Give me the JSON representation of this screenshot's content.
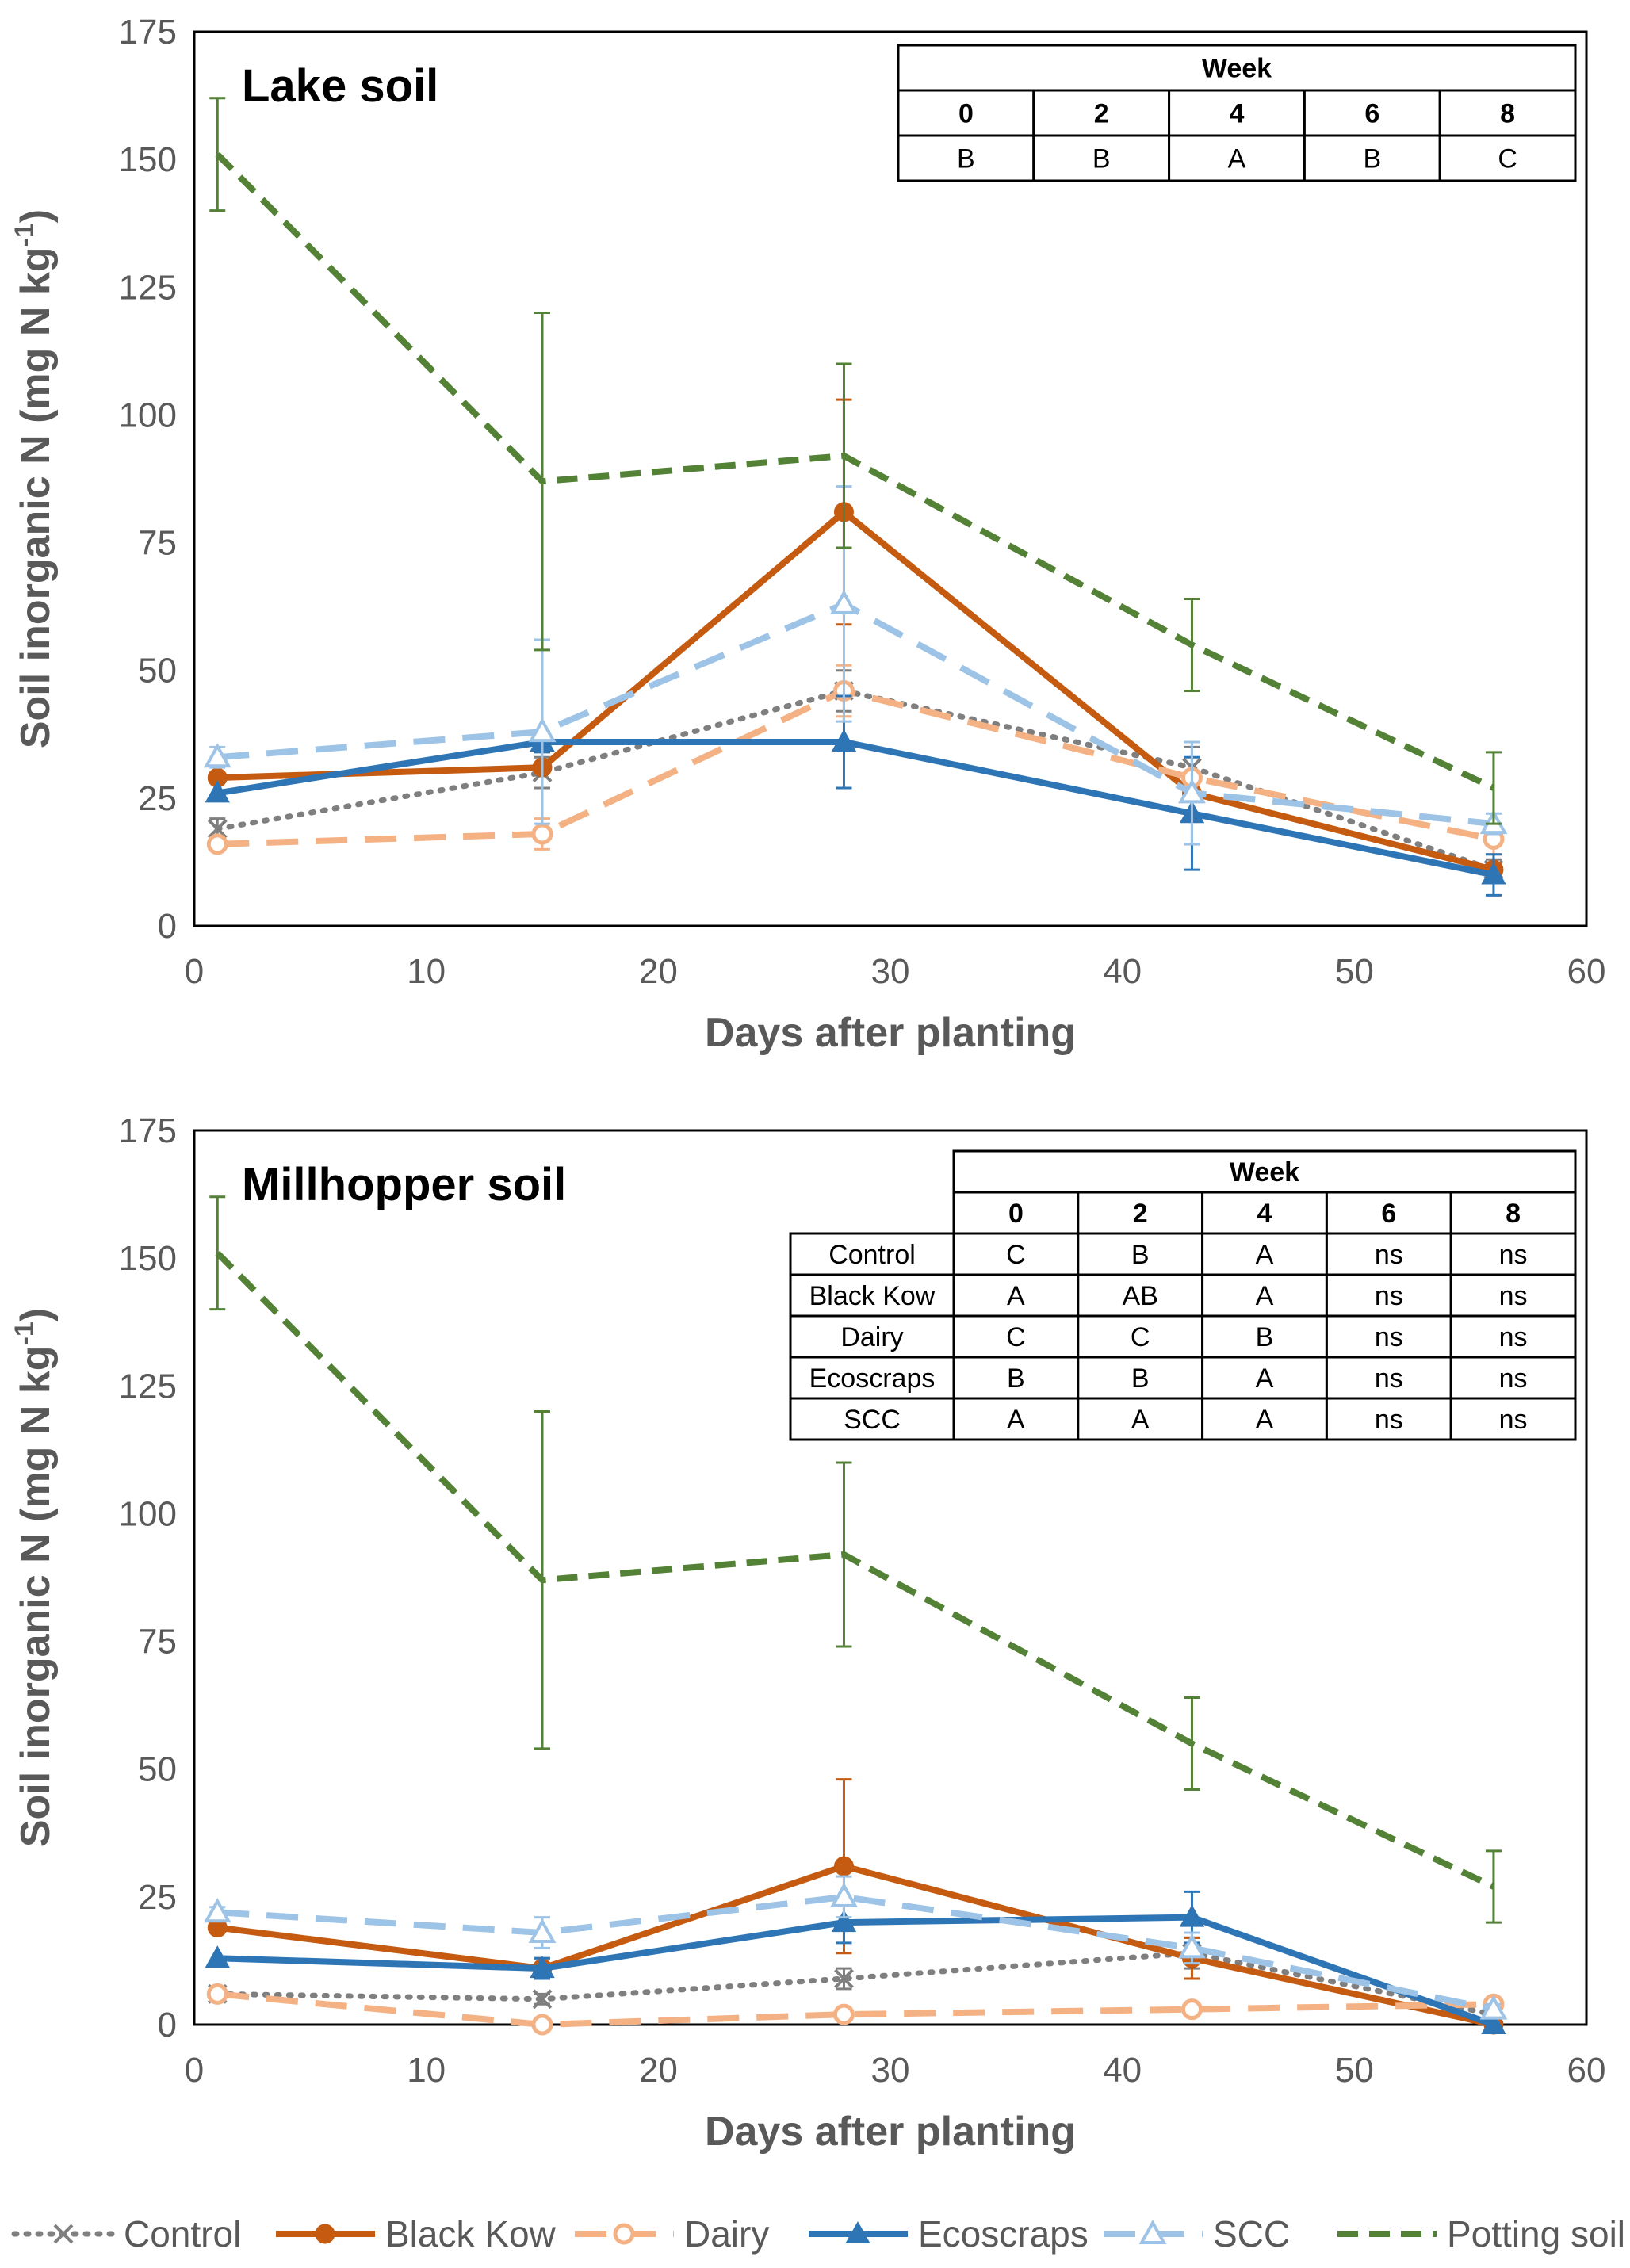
{
  "colors": {
    "Control": "#7f7f7f",
    "Black Kow": "#c55a11",
    "Dairy": "#f4b183",
    "Ecoscraps": "#2e75b6",
    "SCC": "#9dc3e6",
    "Potting soil": "#538135"
  },
  "legend": [
    "Control",
    "Black Kow",
    "Dairy",
    "Ecoscraps",
    "SCC",
    "Potting soil"
  ],
  "chart_data": [
    {
      "type": "line",
      "title": "Lake soil",
      "xlabel": "Days after planting",
      "ylabel_main": "Soil inorganic N (mg N kg",
      "ylabel_sup": "-1",
      "ylabel_end": ")",
      "xlim": [
        0,
        60
      ],
      "ylim": [
        0,
        175
      ],
      "xticks": [
        0,
        10,
        20,
        30,
        40,
        50,
        60
      ],
      "yticks": [
        0,
        25,
        50,
        75,
        100,
        125,
        150,
        175
      ],
      "x": [
        1,
        15,
        28,
        43,
        56
      ],
      "series": [
        {
          "name": "Control",
          "values": [
            19,
            30,
            46,
            31,
            11
          ],
          "errors": [
            2,
            3,
            4,
            4,
            2
          ]
        },
        {
          "name": "Black Kow",
          "values": [
            29,
            31,
            81,
            26,
            11
          ],
          "errors": [
            0,
            0,
            22,
            10,
            1
          ]
        },
        {
          "name": "Dairy",
          "values": [
            16,
            18,
            46,
            29,
            17
          ],
          "errors": [
            0,
            3,
            5,
            7,
            3
          ]
        },
        {
          "name": "Ecoscraps",
          "values": [
            26,
            36,
            36,
            22,
            10
          ],
          "errors": [
            0,
            2,
            9,
            11,
            4
          ]
        },
        {
          "name": "SCC",
          "values": [
            33,
            38,
            63,
            26,
            20
          ],
          "errors": [
            2,
            18,
            23,
            10,
            2
          ]
        },
        {
          "name": "Potting soil",
          "values": [
            151,
            87,
            92,
            55,
            27
          ],
          "errors": [
            11,
            33,
            18,
            9,
            7
          ]
        }
      ],
      "table": {
        "header": "Week",
        "weeks": [
          "0",
          "2",
          "4",
          "6",
          "8"
        ],
        "rows": [
          {
            "label": "",
            "cells": [
              "B",
              "B",
              "A",
              "B",
              "C"
            ]
          }
        ]
      }
    },
    {
      "type": "line",
      "title": "Millhopper soil",
      "xlabel": "Days after planting",
      "ylabel_main": "Soil inorganic N (mg N kg",
      "ylabel_sup": "-1",
      "ylabel_end": ")",
      "xlim": [
        0,
        60
      ],
      "ylim": [
        0,
        175
      ],
      "xticks": [
        0,
        10,
        20,
        30,
        40,
        50,
        60
      ],
      "yticks": [
        0,
        25,
        50,
        75,
        100,
        125,
        150,
        175
      ],
      "x": [
        1,
        15,
        28,
        43,
        56
      ],
      "series": [
        {
          "name": "Control",
          "values": [
            6,
            5,
            9,
            14,
            2
          ],
          "errors": [
            1,
            1,
            2,
            3,
            1
          ]
        },
        {
          "name": "Black Kow",
          "values": [
            19,
            11,
            31,
            13,
            0
          ],
          "errors": [
            0,
            2,
            17,
            4,
            0
          ]
        },
        {
          "name": "Dairy",
          "values": [
            6,
            0,
            2,
            3,
            4
          ],
          "errors": [
            0,
            0,
            0,
            0,
            0
          ]
        },
        {
          "name": "Ecoscraps",
          "values": [
            13,
            11,
            20,
            21,
            0
          ],
          "errors": [
            0,
            2,
            4,
            5,
            0
          ]
        },
        {
          "name": "SCC",
          "values": [
            22,
            18,
            25,
            15,
            3
          ],
          "errors": [
            1,
            3,
            4,
            3,
            1
          ]
        },
        {
          "name": "Potting soil",
          "values": [
            151,
            87,
            92,
            55,
            27
          ],
          "errors": [
            11,
            33,
            18,
            9,
            7
          ]
        }
      ],
      "table": {
        "header": "Week",
        "weeks": [
          "0",
          "2",
          "4",
          "6",
          "8"
        ],
        "rows": [
          {
            "label": "Control",
            "cells": [
              "C",
              "B",
              "A",
              "ns",
              "ns"
            ]
          },
          {
            "label": "Black Kow",
            "cells": [
              "A",
              "AB",
              "A",
              "ns",
              "ns"
            ]
          },
          {
            "label": "Dairy",
            "cells": [
              "C",
              "C",
              "B",
              "ns",
              "ns"
            ]
          },
          {
            "label": "Ecoscraps",
            "cells": [
              "B",
              "B",
              "A",
              "ns",
              "ns"
            ]
          },
          {
            "label": "SCC",
            "cells": [
              "A",
              "A",
              "A",
              "ns",
              "ns"
            ]
          }
        ]
      }
    }
  ]
}
